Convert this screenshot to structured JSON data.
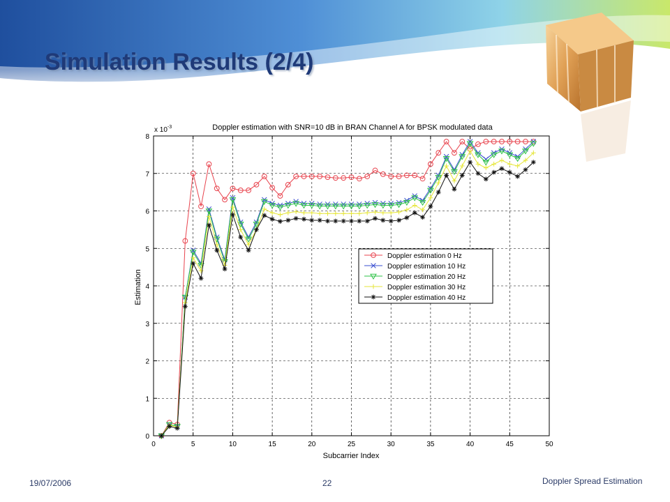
{
  "slide": {
    "title": "Simulation Results (2/4)",
    "date": "19/07/2006",
    "page_number": "22",
    "footer_topic": "Doppler Spread Estimation"
  },
  "colors": {
    "title": "#1f3a78",
    "footer_text": "#2a3a66",
    "plot_background": "#ffffff"
  },
  "chart_data": {
    "type": "line",
    "title": "Doppler estimation with SNR=10 dB in BRAN Channel A for BPSK modulated data",
    "xlabel": "Subcarrier Index",
    "ylabel": "Estimation",
    "y_scale_label": "x 10",
    "y_scale_exponent": "-3",
    "xlim": [
      0,
      50
    ],
    "ylim": [
      0,
      8
    ],
    "xticks": [
      "0",
      "5",
      "10",
      "15",
      "20",
      "25",
      "30",
      "35",
      "40",
      "45",
      "50"
    ],
    "yticks": [
      "0",
      "1",
      "2",
      "3",
      "4",
      "5",
      "6",
      "7",
      "8"
    ],
    "grid": true,
    "legend_position": "center-right",
    "x": [
      1,
      2,
      3,
      4,
      5,
      6,
      7,
      8,
      9,
      10,
      11,
      12,
      13,
      14,
      15,
      16,
      17,
      18,
      19,
      20,
      21,
      22,
      23,
      24,
      25,
      26,
      27,
      28,
      29,
      30,
      31,
      32,
      33,
      34,
      35,
      36,
      37,
      38,
      39,
      40,
      41,
      42,
      43,
      44,
      45,
      46,
      47,
      48
    ],
    "series": [
      {
        "name": "Doppler estimation 0 Hz",
        "color": "#e8434d",
        "marker": "circle",
        "values": [
          0.0,
          0.35,
          0.3,
          5.2,
          7.0,
          6.12,
          7.25,
          6.6,
          6.3,
          6.6,
          6.55,
          6.55,
          6.7,
          6.92,
          6.62,
          6.4,
          6.7,
          6.92,
          6.92,
          6.92,
          6.92,
          6.9,
          6.88,
          6.88,
          6.9,
          6.86,
          6.92,
          7.08,
          6.98,
          6.92,
          6.92,
          6.95,
          6.95,
          6.86,
          7.25,
          7.55,
          7.85,
          7.55,
          7.85,
          7.65,
          7.78,
          7.85,
          7.85,
          7.85,
          7.85,
          7.85,
          7.85,
          7.85
        ]
      },
      {
        "name": "Doppler estimation 10 Hz",
        "color": "#3a4fd0",
        "marker": "x",
        "values": [
          0.0,
          0.3,
          0.25,
          3.7,
          4.95,
          4.6,
          6.05,
          5.3,
          4.7,
          6.35,
          5.7,
          5.3,
          5.7,
          6.3,
          6.2,
          6.15,
          6.2,
          6.25,
          6.2,
          6.2,
          6.18,
          6.18,
          6.18,
          6.18,
          6.18,
          6.18,
          6.2,
          6.22,
          6.2,
          6.2,
          6.22,
          6.28,
          6.4,
          6.28,
          6.6,
          6.95,
          7.45,
          7.1,
          7.5,
          7.85,
          7.55,
          7.38,
          7.55,
          7.65,
          7.55,
          7.45,
          7.65,
          7.85
        ]
      },
      {
        "name": "Doppler estimation 20 Hz",
        "color": "#2ec247",
        "marker": "triangle-down",
        "values": [
          0.0,
          0.3,
          0.25,
          3.7,
          4.9,
          4.55,
          6.0,
          5.25,
          4.65,
          6.3,
          5.65,
          5.25,
          5.65,
          6.25,
          6.15,
          6.1,
          6.15,
          6.2,
          6.15,
          6.15,
          6.13,
          6.13,
          6.13,
          6.13,
          6.13,
          6.13,
          6.15,
          6.17,
          6.15,
          6.15,
          6.17,
          6.23,
          6.35,
          6.23,
          6.55,
          6.9,
          7.4,
          7.05,
          7.45,
          7.8,
          7.5,
          7.3,
          7.5,
          7.6,
          7.5,
          7.4,
          7.6,
          7.8
        ]
      },
      {
        "name": "Doppler estimation 30 Hz",
        "color": "#e6e638",
        "marker": "plus",
        "values": [
          0.0,
          0.28,
          0.24,
          3.55,
          4.75,
          4.4,
          5.85,
          5.1,
          4.55,
          6.1,
          5.5,
          5.1,
          5.5,
          6.05,
          5.95,
          5.9,
          5.95,
          5.98,
          5.95,
          5.95,
          5.93,
          5.93,
          5.93,
          5.93,
          5.93,
          5.93,
          5.95,
          5.97,
          5.95,
          5.95,
          5.97,
          6.03,
          6.15,
          6.03,
          6.35,
          6.75,
          7.2,
          6.8,
          7.2,
          7.6,
          7.25,
          7.15,
          7.25,
          7.35,
          7.25,
          7.2,
          7.35,
          7.55
        ]
      },
      {
        "name": "Doppler estimation 40 Hz",
        "color": "#111111",
        "marker": "asterisk",
        "values": [
          0.0,
          0.25,
          0.2,
          3.45,
          4.6,
          4.2,
          5.62,
          4.95,
          4.45,
          5.9,
          5.3,
          4.95,
          5.5,
          5.88,
          5.78,
          5.72,
          5.75,
          5.8,
          5.78,
          5.75,
          5.75,
          5.73,
          5.73,
          5.73,
          5.73,
          5.73,
          5.73,
          5.8,
          5.75,
          5.73,
          5.75,
          5.82,
          5.95,
          5.83,
          6.12,
          6.5,
          6.95,
          6.58,
          6.95,
          7.3,
          7.0,
          6.85,
          7.03,
          7.13,
          7.03,
          6.92,
          7.1,
          7.3
        ]
      }
    ]
  }
}
